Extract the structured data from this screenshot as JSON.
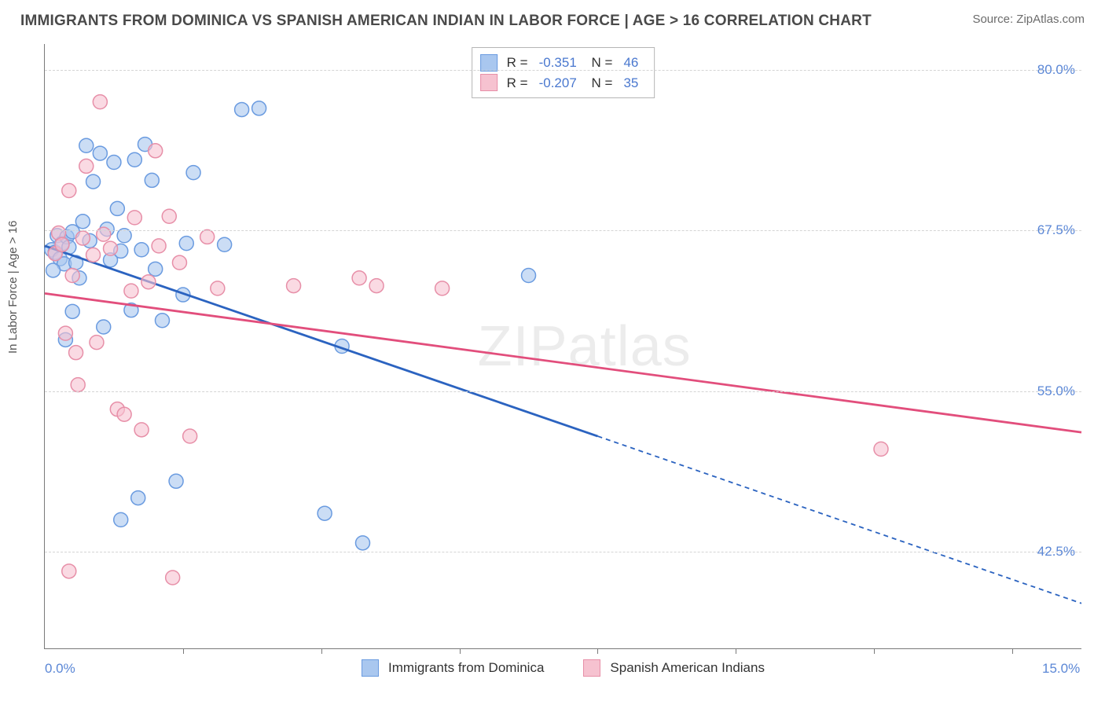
{
  "header": {
    "title": "IMMIGRANTS FROM DOMINICA VS SPANISH AMERICAN INDIAN IN LABOR FORCE | AGE > 16 CORRELATION CHART",
    "source": "Source: ZipAtlas.com"
  },
  "chart": {
    "type": "scatter",
    "ylabel": "In Labor Force | Age > 16",
    "watermark": "ZIPatlas",
    "background_color": "#ffffff",
    "grid_color": "#d4d4d4",
    "axis_color": "#7a7a7a",
    "tick_label_color": "#5b87d6",
    "tick_label_fontsize": 17,
    "ylabel_fontsize": 15,
    "title_fontsize": 19,
    "xlim": [
      0,
      15
    ],
    "ylim": [
      35,
      82
    ],
    "xticks_pos": [
      2,
      4,
      6,
      8,
      10,
      12,
      14
    ],
    "xticks_labeled": [
      {
        "pos": 0,
        "label": "0.0%"
      },
      {
        "pos": 15,
        "label": "15.0%"
      }
    ],
    "yticks": [
      {
        "pos": 42.5,
        "label": "42.5%"
      },
      {
        "pos": 55.0,
        "label": "55.0%"
      },
      {
        "pos": 67.5,
        "label": "67.5%"
      },
      {
        "pos": 80.0,
        "label": "80.0%"
      }
    ],
    "marker_radius": 9,
    "marker_stroke_width": 1.5,
    "marker_fill_opacity": 0.25,
    "line_width": 2.8,
    "dash_pattern": "6,5",
    "series": [
      {
        "name": "Immigrants from Dominica",
        "color_stroke": "#6a9be0",
        "color_fill": "#a9c7ef",
        "line_color": "#2b63c0",
        "R": "-0.351",
        "N": "46",
        "trend": {
          "x1": 0,
          "y1": 66.3,
          "x2": 8,
          "y2": 51.5,
          "x2_dash": 15,
          "y2_dash": 38.5
        },
        "points": [
          [
            0.1,
            66.0
          ],
          [
            0.15,
            65.8
          ],
          [
            0.18,
            67.1
          ],
          [
            0.22,
            65.3
          ],
          [
            0.25,
            66.5
          ],
          [
            0.28,
            64.9
          ],
          [
            0.32,
            67.0
          ],
          [
            0.35,
            66.2
          ],
          [
            0.12,
            64.4
          ],
          [
            0.4,
            67.4
          ],
          [
            0.45,
            65.0
          ],
          [
            0.5,
            63.8
          ],
          [
            0.55,
            68.2
          ],
          [
            0.6,
            74.1
          ],
          [
            0.65,
            66.7
          ],
          [
            0.7,
            71.3
          ],
          [
            0.8,
            73.5
          ],
          [
            0.85,
            60.0
          ],
          [
            0.9,
            67.6
          ],
          [
            0.95,
            65.2
          ],
          [
            1.0,
            72.8
          ],
          [
            1.05,
            69.2
          ],
          [
            1.1,
            65.9
          ],
          [
            1.15,
            67.1
          ],
          [
            1.25,
            61.3
          ],
          [
            1.3,
            73.0
          ],
          [
            1.4,
            66.0
          ],
          [
            1.45,
            74.2
          ],
          [
            1.55,
            71.4
          ],
          [
            1.6,
            64.5
          ],
          [
            1.7,
            60.5
          ],
          [
            1.35,
            46.7
          ],
          [
            1.1,
            45.0
          ],
          [
            1.9,
            48.0
          ],
          [
            2.0,
            62.5
          ],
          [
            2.05,
            66.5
          ],
          [
            2.15,
            72.0
          ],
          [
            2.85,
            76.9
          ],
          [
            2.6,
            66.4
          ],
          [
            3.1,
            77.0
          ],
          [
            4.05,
            45.5
          ],
          [
            4.6,
            43.2
          ],
          [
            4.3,
            58.5
          ],
          [
            7.0,
            64.0
          ],
          [
            0.3,
            59.0
          ],
          [
            0.4,
            61.2
          ]
        ]
      },
      {
        "name": "Spanish American Indians",
        "color_stroke": "#e78fa8",
        "color_fill": "#f6c2d0",
        "line_color": "#e24e7c",
        "R": "-0.207",
        "N": "35",
        "trend": {
          "x1": 0,
          "y1": 62.6,
          "x2": 15,
          "y2": 51.8,
          "x2_dash": 15,
          "y2_dash": 51.8
        },
        "points": [
          [
            0.15,
            65.7
          ],
          [
            0.2,
            67.3
          ],
          [
            0.25,
            66.4
          ],
          [
            0.3,
            59.5
          ],
          [
            0.35,
            70.6
          ],
          [
            0.4,
            64.0
          ],
          [
            0.45,
            58.0
          ],
          [
            0.55,
            66.9
          ],
          [
            0.6,
            72.5
          ],
          [
            0.7,
            65.6
          ],
          [
            0.75,
            58.8
          ],
          [
            0.85,
            67.2
          ],
          [
            0.95,
            66.1
          ],
          [
            1.05,
            53.6
          ],
          [
            1.15,
            53.2
          ],
          [
            1.25,
            62.8
          ],
          [
            1.3,
            68.5
          ],
          [
            1.4,
            52.0
          ],
          [
            1.5,
            63.5
          ],
          [
            1.6,
            73.7
          ],
          [
            1.65,
            66.3
          ],
          [
            1.8,
            68.6
          ],
          [
            0.35,
            41.0
          ],
          [
            0.8,
            77.5
          ],
          [
            1.95,
            65.0
          ],
          [
            2.1,
            51.5
          ],
          [
            2.35,
            67.0
          ],
          [
            2.5,
            63.0
          ],
          [
            3.6,
            63.2
          ],
          [
            4.55,
            63.8
          ],
          [
            4.8,
            63.2
          ],
          [
            5.75,
            63.0
          ],
          [
            12.1,
            50.5
          ],
          [
            1.85,
            40.5
          ],
          [
            0.48,
            55.5
          ]
        ]
      }
    ],
    "legend": {
      "swatch_size": 20
    }
  }
}
